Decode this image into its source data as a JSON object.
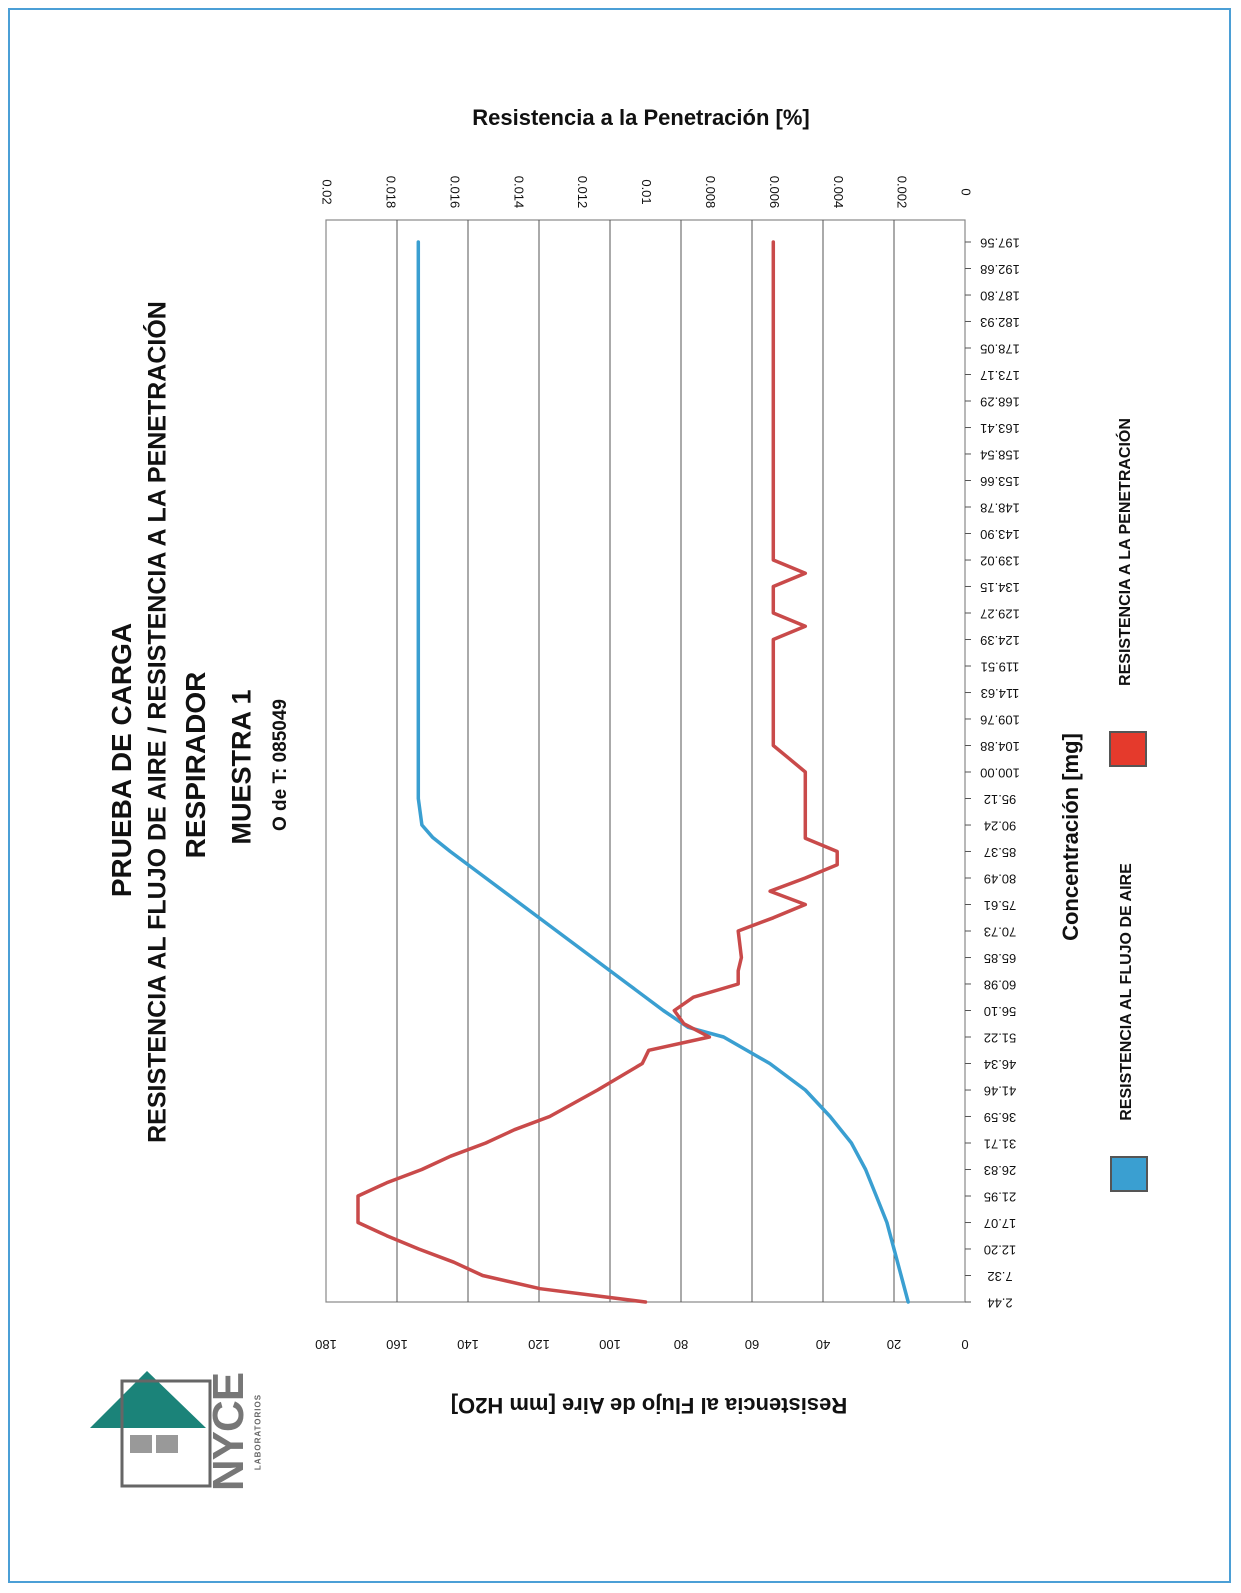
{
  "document": {
    "title_lines": [
      "PRUEBA DE CARGA",
      "RESISTENCIA AL FLUJO DE AIRE / RESISTENCIA A LA PENETRACIÓN",
      "RESPIRADOR",
      "MUESTRA 1",
      "O de T: 085049"
    ],
    "logo": {
      "name": "NYCE",
      "subtitle": "LABORATORIOS"
    }
  },
  "chart_data": {
    "type": "line",
    "xlabel": "Concentración [mg]",
    "ylabel_left": "Resistencia al Flujo de Aire [mm H2O]",
    "ylabel_right": "Resistencia a la Penetración [%]",
    "y_left_range": [
      0,
      180
    ],
    "y_left_ticks": [
      "0",
      "20",
      "40",
      "60",
      "80",
      "100",
      "120",
      "140",
      "160",
      "180"
    ],
    "y_right_range": [
      0,
      0.02
    ],
    "y_right_ticks": [
      "0",
      "0.002",
      "0.004",
      "0.006",
      "0.008",
      "0.01",
      "0.012",
      "0.014",
      "0.016",
      "0.018",
      "0.02"
    ],
    "x_ticks": [
      "2.44",
      "7.32",
      "12.20",
      "17.07",
      "21.95",
      "26.83",
      "31.71",
      "36.59",
      "41.46",
      "46.34",
      "51.22",
      "56.10",
      "60.98",
      "65.85",
      "70.73",
      "75.61",
      "80.49",
      "85.37",
      "90.24",
      "95.12",
      "100.00",
      "104.88",
      "109.76",
      "114.63",
      "119.51",
      "124.39",
      "129.27",
      "134.15",
      "139.02",
      "143.90",
      "148.78",
      "153.66",
      "158.54",
      "163.41",
      "168.29",
      "173.17",
      "178.05",
      "182.93",
      "187.80",
      "192.68",
      "197.56"
    ],
    "grid": "horizontal",
    "legend_position": "bottom",
    "series": [
      {
        "name": "RESISTENCIA AL FLUJO DE AIRE",
        "axis": "left",
        "color": "#3a9fd1",
        "x": [
          2.44,
          7.32,
          12.2,
          17.07,
          21.95,
          26.83,
          31.71,
          36.59,
          41.46,
          46.34,
          51.22,
          53,
          56.1,
          60.98,
          65.85,
          70.73,
          75.61,
          80.49,
          85.37,
          88,
          90.24,
          95.12,
          100,
          197.56
        ],
        "y": [
          16,
          18,
          20,
          22,
          25,
          28,
          32,
          38,
          45,
          55,
          68,
          78,
          85,
          95,
          105,
          115,
          125,
          135,
          145,
          150,
          153,
          154,
          154,
          154
        ]
      },
      {
        "name": "RESISTENCIA A LA PENETRACIÓN",
        "axis": "right",
        "color": "#c94a4a",
        "x": [
          2.44,
          4.88,
          7.32,
          9.76,
          12.2,
          14.64,
          17.07,
          21.95,
          24.39,
          26.83,
          29.27,
          31.71,
          34.15,
          36.59,
          41.46,
          46.34,
          48.78,
          51.22,
          53.66,
          56.1,
          58.54,
          60.98,
          63.41,
          65.85,
          70.73,
          73.17,
          75.61,
          78.05,
          80.49,
          82.93,
          85.37,
          87.8,
          90.24,
          95.12,
          100,
          102.44,
          104.88,
          109.76,
          124.39,
          126.83,
          129.27,
          134.15,
          136.59,
          139.02,
          143.9,
          197.56
        ],
        "y": [
          0.01,
          0.0133,
          0.0151,
          0.016,
          0.0171,
          0.0181,
          0.019,
          0.019,
          0.0181,
          0.017,
          0.0161,
          0.015,
          0.0141,
          0.013,
          0.0115,
          0.0101,
          0.0099,
          0.008,
          0.0088,
          0.0091,
          0.0085,
          0.0071,
          0.0071,
          0.007,
          0.0071,
          0.006,
          0.005,
          0.0061,
          0.005,
          0.004,
          0.004,
          0.005,
          0.005,
          0.005,
          0.005,
          0.0055,
          0.006,
          0.006,
          0.006,
          0.005,
          0.006,
          0.006,
          0.005,
          0.006,
          0.006,
          0.006
        ]
      }
    ]
  }
}
